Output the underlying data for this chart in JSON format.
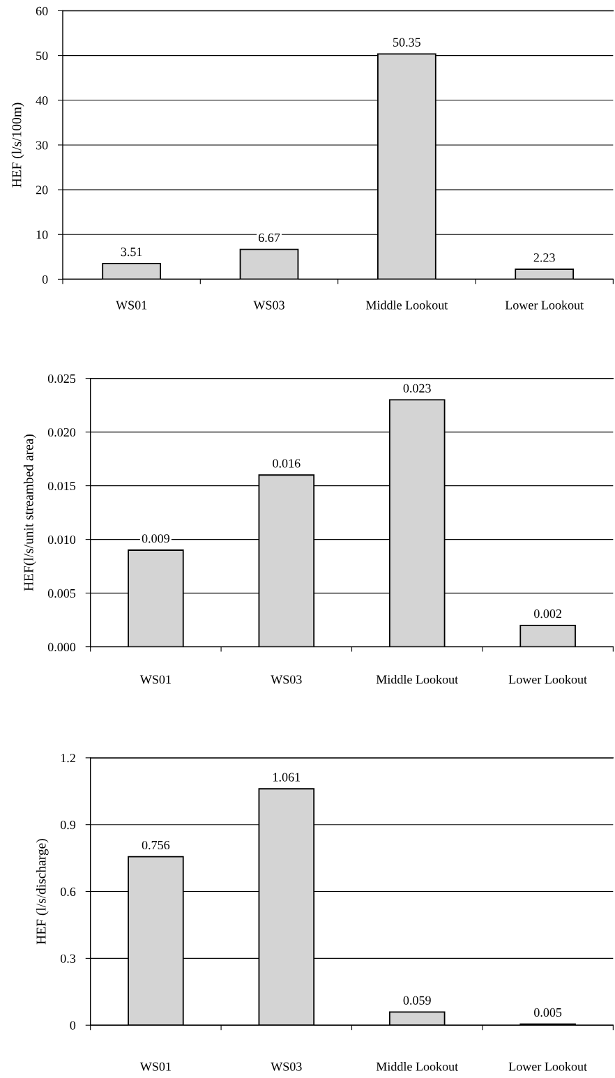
{
  "chart_data": [
    {
      "type": "bar",
      "categories": [
        "WS01",
        "WS03",
        "Middle Lookout",
        "Lower Lookout"
      ],
      "values": [
        3.51,
        6.67,
        50.35,
        2.23
      ],
      "color": "#d4d4d4",
      "ylabel": "HEF (l/s/100m)",
      "ylim": [
        0,
        60
      ],
      "yticks": [
        0,
        10,
        20,
        30,
        40,
        50,
        60
      ],
      "grid": "y",
      "data_labels": true
    },
    {
      "type": "bar",
      "categories": [
        "WS01",
        "WS03",
        "Middle Lookout",
        "Lower Lookout"
      ],
      "values": [
        0.009,
        0.016,
        0.023,
        0.002
      ],
      "color": "#d4d4d4",
      "ylabel": "HEF(l/s/unit streambed area)",
      "ylim": [
        0,
        0.025
      ],
      "yticks": [
        {
          "value": 0,
          "label": "0.000"
        },
        {
          "value": 0.005,
          "label": "0.005"
        },
        {
          "value": 0.01,
          "label": "0.010"
        },
        {
          "value": 0.015,
          "label": "0.015"
        },
        {
          "value": 0.02,
          "label": "0.020"
        },
        {
          "value": 0.025,
          "label": "0.025"
        }
      ],
      "grid": "y",
      "data_labels": true
    },
    {
      "type": "bar",
      "categories": [
        "WS01",
        "WS03",
        "Middle Lookout",
        "Lower Lookout"
      ],
      "values": [
        0.756,
        1.061,
        0.059,
        0.005
      ],
      "color": "#d4d4d4",
      "ylabel": "HEF (l/s/discharge)",
      "ylim": [
        0,
        1.2
      ],
      "yticks": [
        0,
        0.3,
        0.6,
        0.9,
        1.2
      ],
      "grid": "y",
      "data_labels": true
    }
  ]
}
